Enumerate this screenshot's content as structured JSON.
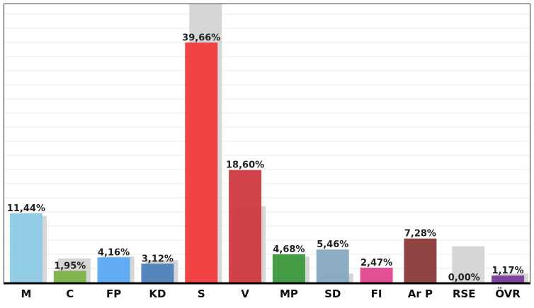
{
  "chart_data": {
    "type": "bar",
    "title": "",
    "xlabel": "",
    "ylabel": "",
    "ylim": [
      0,
      46
    ],
    "grid": true,
    "categories": [
      "M",
      "C",
      "FP",
      "KD",
      "S",
      "V",
      "MP",
      "SD",
      "FI",
      "Ar P",
      "RSE",
      "ÖVR"
    ],
    "value_labels": [
      "11,44%",
      "1,95%",
      "4,16%",
      "3,12%",
      "39,66%",
      "18,60%",
      "4,68%",
      "5,46%",
      "2,47%",
      "7,28%",
      "0,00%",
      "1,17%"
    ],
    "series": [
      {
        "values": [
          11.44,
          1.95,
          4.16,
          3.12,
          39.66,
          18.6,
          4.68,
          5.46,
          2.47,
          7.28,
          0.0,
          1.17
        ],
        "colors": [
          "#8ecae6",
          "#7db249",
          "#5aa9f2",
          "#4f81bd",
          "#f23b3b",
          "#cd3a3f",
          "#3c9a3c",
          "#87a9c2",
          "#e0468d",
          "#8b3a3a",
          "#cccccc",
          "#7a3c98"
        ]
      },
      {
        "values": [
          11.0,
          4.0,
          4.3,
          3.7,
          46.0,
          12.6,
          4.3,
          1.5,
          0.0,
          0.0,
          6.0,
          1.5
        ],
        "colors": [
          "#d6d6d6"
        ]
      }
    ]
  }
}
